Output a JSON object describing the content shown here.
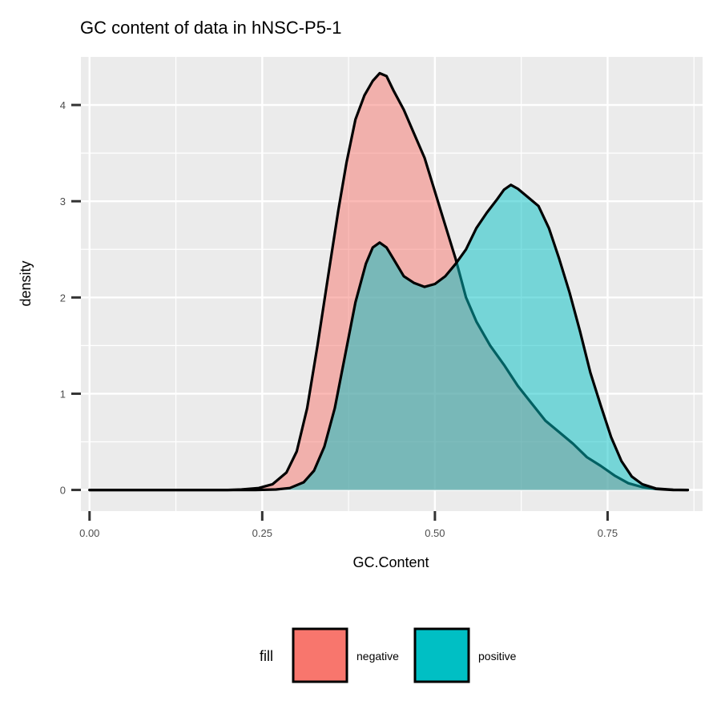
{
  "chart_data": {
    "type": "area",
    "title": "GC content of data in hNSC-P5-1",
    "xlabel": "GC.Content",
    "ylabel": "density",
    "xlim": [
      -0.0125,
      0.8875
    ],
    "ylim": [
      -0.22,
      4.5
    ],
    "x_ticks": [
      "0.00",
      "0.25",
      "0.50",
      "0.75"
    ],
    "y_ticks": [
      "0",
      "1",
      "2",
      "3",
      "4"
    ],
    "grid": true,
    "legend": {
      "title": "fill",
      "position": "bottom"
    },
    "series": [
      {
        "name": "negative",
        "color": "#F8766D",
        "points": [
          [
            0.0,
            0.0
          ],
          [
            0.2,
            0.0
          ],
          [
            0.22,
            0.005
          ],
          [
            0.245,
            0.02
          ],
          [
            0.265,
            0.06
          ],
          [
            0.285,
            0.18
          ],
          [
            0.3,
            0.4
          ],
          [
            0.315,
            0.85
          ],
          [
            0.33,
            1.5
          ],
          [
            0.345,
            2.2
          ],
          [
            0.36,
            2.9
          ],
          [
            0.372,
            3.4
          ],
          [
            0.385,
            3.85
          ],
          [
            0.398,
            4.1
          ],
          [
            0.41,
            4.25
          ],
          [
            0.42,
            4.33
          ],
          [
            0.43,
            4.3
          ],
          [
            0.44,
            4.15
          ],
          [
            0.455,
            3.95
          ],
          [
            0.47,
            3.7
          ],
          [
            0.485,
            3.45
          ],
          [
            0.5,
            3.1
          ],
          [
            0.515,
            2.75
          ],
          [
            0.53,
            2.4
          ],
          [
            0.545,
            2.0
          ],
          [
            0.56,
            1.75
          ],
          [
            0.58,
            1.5
          ],
          [
            0.6,
            1.3
          ],
          [
            0.62,
            1.08
          ],
          [
            0.64,
            0.9
          ],
          [
            0.66,
            0.72
          ],
          [
            0.68,
            0.6
          ],
          [
            0.7,
            0.48
          ],
          [
            0.72,
            0.34
          ],
          [
            0.74,
            0.25
          ],
          [
            0.76,
            0.15
          ],
          [
            0.78,
            0.07
          ],
          [
            0.8,
            0.03
          ],
          [
            0.82,
            0.01
          ],
          [
            0.845,
            0.0
          ],
          [
            0.866,
            0.0
          ]
        ]
      },
      {
        "name": "positive",
        "color": "#00BFC4",
        "points": [
          [
            0.0,
            0.0
          ],
          [
            0.24,
            0.0
          ],
          [
            0.27,
            0.005
          ],
          [
            0.29,
            0.02
          ],
          [
            0.31,
            0.08
          ],
          [
            0.325,
            0.2
          ],
          [
            0.34,
            0.45
          ],
          [
            0.355,
            0.85
          ],
          [
            0.37,
            1.4
          ],
          [
            0.385,
            1.95
          ],
          [
            0.4,
            2.35
          ],
          [
            0.41,
            2.52
          ],
          [
            0.42,
            2.57
          ],
          [
            0.43,
            2.52
          ],
          [
            0.44,
            2.4
          ],
          [
            0.455,
            2.22
          ],
          [
            0.47,
            2.15
          ],
          [
            0.485,
            2.11
          ],
          [
            0.5,
            2.14
          ],
          [
            0.515,
            2.22
          ],
          [
            0.53,
            2.35
          ],
          [
            0.545,
            2.5
          ],
          [
            0.56,
            2.72
          ],
          [
            0.575,
            2.88
          ],
          [
            0.59,
            3.02
          ],
          [
            0.6,
            3.12
          ],
          [
            0.61,
            3.17
          ],
          [
            0.62,
            3.13
          ],
          [
            0.635,
            3.04
          ],
          [
            0.65,
            2.95
          ],
          [
            0.665,
            2.72
          ],
          [
            0.68,
            2.4
          ],
          [
            0.695,
            2.05
          ],
          [
            0.71,
            1.65
          ],
          [
            0.725,
            1.22
          ],
          [
            0.74,
            0.88
          ],
          [
            0.755,
            0.55
          ],
          [
            0.77,
            0.3
          ],
          [
            0.785,
            0.14
          ],
          [
            0.8,
            0.06
          ],
          [
            0.82,
            0.015
          ],
          [
            0.845,
            0.002
          ],
          [
            0.866,
            0.0
          ]
        ]
      }
    ]
  }
}
